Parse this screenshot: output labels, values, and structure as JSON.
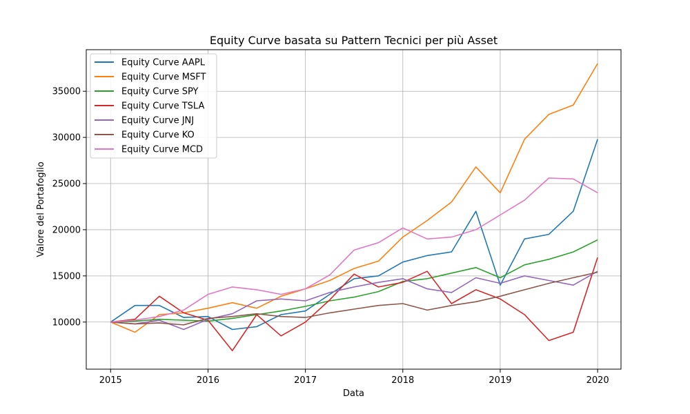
{
  "chart_data": {
    "type": "line",
    "title": "Equity Curve basata su Pattern Tecnici per più Asset",
    "xlabel": "Data",
    "ylabel": "Valore del Portafoglio",
    "x_ticks": [
      "2015",
      "2016",
      "2017",
      "2018",
      "2019",
      "2020"
    ],
    "y_ticks": [
      "10000",
      "15000",
      "20000",
      "25000",
      "30000",
      "35000"
    ],
    "x_range": [
      2014.75,
      2020.24
    ],
    "ylim": [
      4900,
      39500
    ],
    "grid": true,
    "legend_position": "upper-left",
    "x": [
      2015.0,
      2015.25,
      2015.5,
      2015.75,
      2016.0,
      2016.25,
      2016.5,
      2016.75,
      2017.0,
      2017.25,
      2017.5,
      2017.75,
      2018.0,
      2018.25,
      2018.5,
      2018.75,
      2019.0,
      2019.25,
      2019.5,
      2019.75,
      2020.0
    ],
    "series": [
      {
        "name": "Equity Curve AAPL",
        "color": "#1f77b4",
        "values": [
          10000,
          11800,
          11800,
          10500,
          10600,
          9200,
          9500,
          10800,
          11200,
          13000,
          14700,
          15000,
          16500,
          17200,
          17600,
          22000,
          14000,
          19000,
          19500,
          22000,
          29800
        ]
      },
      {
        "name": "Equity Curve MSFT",
        "color": "#ff7f0e",
        "values": [
          10000,
          8900,
          10800,
          11000,
          11500,
          12100,
          11500,
          12800,
          13600,
          14500,
          15800,
          16600,
          19200,
          21000,
          23000,
          26800,
          24000,
          29800,
          32500,
          33500,
          38000
        ]
      },
      {
        "name": "Equity Curve SPY",
        "color": "#2ca02c",
        "values": [
          10000,
          10100,
          10300,
          10200,
          10100,
          10400,
          10800,
          11200,
          11700,
          12300,
          12700,
          13300,
          14400,
          14700,
          15300,
          15900,
          14800,
          16200,
          16800,
          17600,
          18900
        ]
      },
      {
        "name": "Equity Curve TSLA",
        "color": "#d62728",
        "values": [
          10000,
          10300,
          12800,
          11000,
          10200,
          6900,
          10800,
          8500,
          10000,
          12400,
          15200,
          13800,
          14300,
          15500,
          12000,
          13500,
          12500,
          10800,
          8000,
          8900,
          17000
        ]
      },
      {
        "name": "Equity Curve JNJ",
        "color": "#9467bd",
        "values": [
          10000,
          9800,
          10200,
          9200,
          10300,
          10900,
          12300,
          12500,
          12300,
          13200,
          13800,
          14300,
          14700,
          13600,
          13200,
          14800,
          14200,
          15000,
          14500,
          14000,
          15500
        ]
      },
      {
        "name": "Equity Curve KO",
        "color": "#8c564b",
        "values": [
          10000,
          9800,
          9900,
          9700,
          10400,
          10600,
          10900,
          10600,
          10500,
          11000,
          11400,
          11800,
          12000,
          11300,
          11800,
          12200,
          12800,
          13500,
          14200,
          14800,
          15400
        ]
      },
      {
        "name": "Equity Curve MCD",
        "color": "#e377c2",
        "values": [
          10000,
          10200,
          10600,
          11300,
          13000,
          13800,
          13500,
          13000,
          13600,
          15100,
          17800,
          18600,
          20200,
          19000,
          19200,
          20000,
          21600,
          23200,
          25600,
          25500,
          24000
        ]
      }
    ]
  }
}
